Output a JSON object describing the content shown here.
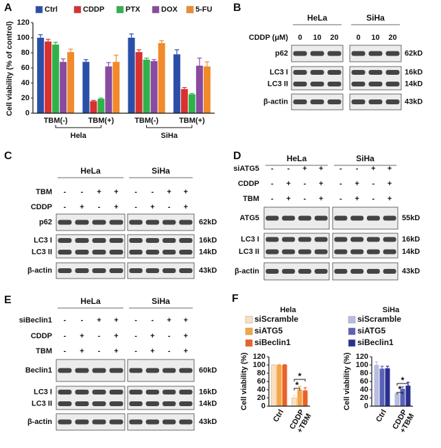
{
  "chart_data": [
    {
      "type": "bar",
      "panel": "A",
      "y_label": "Cell viability (% of control)",
      "categories": [
        "TBM(-)",
        "TBM(+)",
        "TBM(-)",
        "TBM(+)"
      ],
      "groups": [
        "Hela",
        "SiHa"
      ],
      "series": [
        {
          "name": "Ctrl",
          "color": "#2b4fa8",
          "values": [
            100,
            68,
            100,
            78
          ],
          "errors": [
            4,
            3,
            5,
            6
          ]
        },
        {
          "name": "CDDP",
          "color": "#d93030",
          "values": [
            95,
            16,
            81,
            32
          ],
          "errors": [
            3,
            1,
            3,
            2
          ]
        },
        {
          "name": "PTX",
          "color": "#2fb24a",
          "values": [
            91,
            19,
            71,
            25
          ],
          "errors": [
            3,
            1,
            2,
            1
          ]
        },
        {
          "name": "DOX",
          "color": "#8a4aa0",
          "values": [
            68,
            62,
            69,
            63
          ],
          "errors": [
            4,
            5,
            2,
            10
          ]
        },
        {
          "name": "5-FU",
          "color": "#f08a2a",
          "values": [
            81,
            68,
            93,
            62
          ],
          "errors": [
            4,
            9,
            3,
            6
          ]
        }
      ],
      "ylim": [
        0,
        120
      ],
      "yticks": [
        0,
        20,
        40,
        60,
        80,
        100,
        120
      ]
    },
    {
      "type": "bar",
      "panel": "F",
      "title": "Hela",
      "y_label": "Cell viability (%)",
      "categories": [
        "Ctrl",
        "CDDP\n+TBM"
      ],
      "series": [
        {
          "name": "siScramble",
          "color": "#fbe0c0",
          "values": [
            100,
            20
          ],
          "errors": [
            1,
            6
          ]
        },
        {
          "name": "siATG5",
          "color": "#f5a545",
          "values": [
            100,
            40
          ],
          "errors": [
            1,
            8
          ]
        },
        {
          "name": "siBeclin1",
          "color": "#e8632a",
          "values": [
            100,
            38
          ],
          "errors": [
            1,
            7
          ]
        }
      ],
      "annotations": [
        "*",
        "*"
      ],
      "ylim": [
        0,
        120
      ],
      "yticks": [
        0,
        20,
        40,
        60,
        80,
        100,
        120
      ]
    },
    {
      "type": "bar",
      "title": "SiHa",
      "y_label": "Cell viability (%)",
      "categories": [
        "Ctrl",
        "CDDP\n+TBM"
      ],
      "series": [
        {
          "name": "siScramble",
          "color": "#b8bde0",
          "values": [
            100,
            31
          ],
          "errors": [
            8,
            2
          ]
        },
        {
          "name": "siATG5",
          "color": "#5a62b8",
          "values": [
            91,
            42
          ],
          "errors": [
            6,
            5
          ]
        },
        {
          "name": "siBeclin1",
          "color": "#2a3090",
          "values": [
            92,
            50
          ],
          "errors": [
            5,
            8
          ]
        }
      ],
      "annotations": [
        "*",
        "*"
      ],
      "ylim": [
        0,
        120
      ],
      "yticks": [
        0,
        20,
        40,
        60,
        80,
        100,
        120
      ]
    }
  ],
  "blots": [
    {
      "panel": "B",
      "cell_lines": [
        "HeLa",
        "SiHa"
      ],
      "conditions": [
        {
          "label": "CDDP  (μM)",
          "lanes": [
            "0",
            "10",
            "20",
            "0",
            "10",
            "20"
          ]
        }
      ],
      "blocks": [
        {
          "labels": [
            "p62"
          ],
          "sizes": [
            "62kD"
          ]
        },
        {
          "labels": [
            "LC3 I",
            "LC3 II"
          ],
          "sizes": [
            "16kD",
            "14kD"
          ]
        },
        {
          "labels": [
            "β-actin"
          ],
          "sizes": [
            "43kD"
          ]
        }
      ]
    },
    {
      "panel": "C",
      "cell_lines": [
        "HeLa",
        "SiHa"
      ],
      "conditions": [
        {
          "label": "TBM",
          "lanes": [
            "-",
            "-",
            "+",
            "+",
            "-",
            "-",
            "+",
            "+"
          ]
        },
        {
          "label": "CDDP",
          "lanes": [
            "-",
            "+",
            "-",
            "+",
            "-",
            "+",
            "-",
            "+"
          ]
        }
      ],
      "blocks": [
        {
          "labels": [
            "p62"
          ],
          "sizes": [
            "62kD"
          ]
        },
        {
          "labels": [
            "LC3 I",
            "LC3 II"
          ],
          "sizes": [
            "16kD",
            "14kD"
          ]
        },
        {
          "labels": [
            "β-actin"
          ],
          "sizes": [
            "43kD"
          ]
        }
      ]
    },
    {
      "panel": "D",
      "cell_lines": [
        "HeLa",
        "SiHa"
      ],
      "conditions": [
        {
          "label": "siATG5",
          "lanes": [
            "-",
            "-",
            "+",
            "+",
            "-",
            "-",
            "+",
            "+"
          ]
        },
        {
          "label": "CDDP",
          "lanes": [
            "-",
            "+",
            "-",
            "+",
            "-",
            "+",
            "-",
            "+"
          ]
        },
        {
          "label": "TBM",
          "lanes": [
            "-",
            "+",
            "-",
            "+",
            "-",
            "+",
            "-",
            "+"
          ]
        }
      ],
      "blocks": [
        {
          "labels": [
            "ATG5"
          ],
          "sizes": [
            "55kD"
          ]
        },
        {
          "labels": [
            "LC3 I",
            "LC3 II"
          ],
          "sizes": [
            "16kD",
            "14kD"
          ]
        },
        {
          "labels": [
            "β-actin"
          ],
          "sizes": [
            "43kD"
          ]
        }
      ]
    },
    {
      "panel": "E",
      "cell_lines": [
        "HeLa",
        "SiHa"
      ],
      "conditions": [
        {
          "label": "siBeclin1",
          "lanes": [
            "-",
            "-",
            "+",
            "+",
            "-",
            "-",
            "+",
            "+"
          ]
        },
        {
          "label": "CDDP",
          "lanes": [
            "-",
            "+",
            "-",
            "+",
            "-",
            "+",
            "-",
            "+"
          ]
        },
        {
          "label": "TBM",
          "lanes": [
            "-",
            "+",
            "-",
            "+",
            "-",
            "+",
            "-",
            "+"
          ]
        }
      ],
      "blocks": [
        {
          "labels": [
            "Beclin1"
          ],
          "sizes": [
            "60kD"
          ]
        },
        {
          "labels": [
            "LC3 I",
            "LC3 II"
          ],
          "sizes": [
            "16kD",
            "14kD"
          ]
        },
        {
          "labels": [
            "β-actin"
          ],
          "sizes": [
            "43kD"
          ]
        }
      ]
    }
  ]
}
